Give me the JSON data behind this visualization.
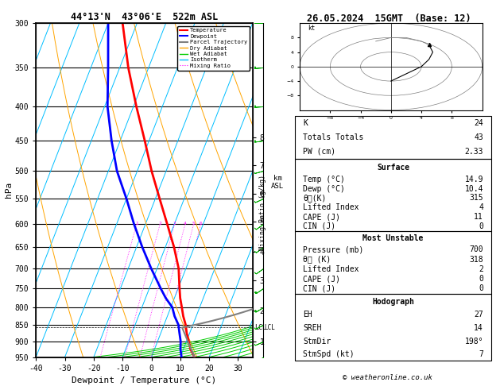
{
  "title_left": "44°13'N  43°06'E  522m ASL",
  "title_right": "26.05.2024  15GMT  (Base: 12)",
  "xlabel": "Dewpoint / Temperature (°C)",
  "ylabel_left": "hPa",
  "ylabel_right_km": "km\nASL",
  "ylabel_mid": "Mixing Ratio (g/kg)",
  "pressure_levels": [
    300,
    350,
    400,
    450,
    500,
    550,
    600,
    650,
    700,
    750,
    800,
    850,
    900,
    950
  ],
  "temp_xlim": [
    -40,
    35
  ],
  "bg_color": "#ffffff",
  "isotherms_color": "#00bfff",
  "dry_adiabat_color": "#ffa500",
  "wet_adiabat_color": "#00cc00",
  "mixing_ratio_color": "#ff00ff",
  "temperature_color": "#ff0000",
  "dewpoint_color": "#0000ff",
  "parcel_color": "#808080",
  "wind_barb_color": "#00aa00",
  "skew_factor": 45.0,
  "pmin": 300,
  "pmax": 950,
  "temp_data": [
    [
      950,
      14.9
    ],
    [
      925,
      12.5
    ],
    [
      900,
      10.8
    ],
    [
      875,
      9.0
    ],
    [
      850,
      7.5
    ],
    [
      825,
      5.5
    ],
    [
      800,
      3.8
    ],
    [
      775,
      2.0
    ],
    [
      750,
      0.5
    ],
    [
      700,
      -2.5
    ],
    [
      650,
      -7.0
    ],
    [
      600,
      -12.5
    ],
    [
      550,
      -18.5
    ],
    [
      500,
      -25.0
    ],
    [
      450,
      -31.5
    ],
    [
      400,
      -39.0
    ],
    [
      350,
      -47.0
    ],
    [
      300,
      -55.0
    ]
  ],
  "dewp_data": [
    [
      950,
      10.4
    ],
    [
      925,
      9.0
    ],
    [
      900,
      8.0
    ],
    [
      875,
      6.5
    ],
    [
      850,
      5.0
    ],
    [
      825,
      2.5
    ],
    [
      800,
      0.5
    ],
    [
      775,
      -3.0
    ],
    [
      750,
      -6.0
    ],
    [
      700,
      -12.0
    ],
    [
      650,
      -18.0
    ],
    [
      600,
      -24.0
    ],
    [
      550,
      -30.0
    ],
    [
      500,
      -37.0
    ],
    [
      450,
      -43.0
    ],
    [
      400,
      -49.0
    ],
    [
      350,
      -54.0
    ],
    [
      300,
      -60.0
    ]
  ],
  "km_ticks": [
    1,
    2,
    3,
    4,
    5,
    6,
    7,
    8
  ],
  "km_pressures": [
    900,
    810,
    730,
    660,
    595,
    540,
    490,
    445
  ],
  "mixing_ratios": [
    1,
    2,
    3,
    4,
    5,
    6,
    8,
    10,
    15,
    20,
    25
  ],
  "stats": {
    "K": 24,
    "Totals_Totals": 43,
    "PW_cm": 2.33,
    "Surface_Temp": 14.9,
    "Surface_Dewp": 10.4,
    "Surface_ThetaE": 315,
    "Surface_LiftedIndex": 4,
    "Surface_CAPE": 11,
    "Surface_CIN": 0,
    "MU_Pressure": 700,
    "MU_ThetaE": 318,
    "MU_LiftedIndex": 2,
    "MU_CAPE": 0,
    "MU_CIN": 0,
    "EH": 27,
    "SREH": 14,
    "StmDir": 198,
    "StmSpd": 7
  },
  "footer": "© weatheronline.co.uk",
  "lcl_pressure": 858
}
